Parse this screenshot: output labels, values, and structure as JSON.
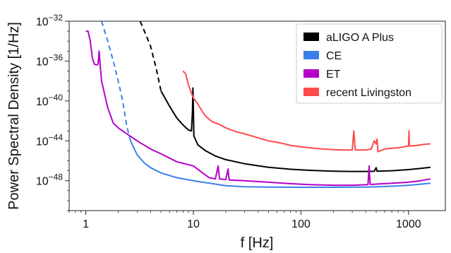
{
  "chart_data": {
    "type": "line",
    "title": "",
    "xlabel": "f [Hz]",
    "ylabel": "Power Spectral Density [1/Hz]",
    "xscale": "log",
    "yscale": "log",
    "xlim": [
      0.7,
      2200
    ],
    "ylim": [
      1e-51,
      1e-32
    ],
    "xticks": [
      {
        "value": 1,
        "label": "1"
      },
      {
        "value": 10,
        "label": "10"
      },
      {
        "value": 100,
        "label": "100"
      },
      {
        "value": 1000,
        "label": "1000"
      }
    ],
    "yticks": [
      {
        "value": 1e-32,
        "base": "10",
        "exp": "−32"
      },
      {
        "value": 1e-36,
        "base": "10",
        "exp": "−36"
      },
      {
        "value": 1e-40,
        "base": "10",
        "exp": "−40"
      },
      {
        "value": 1e-44,
        "base": "10",
        "exp": "−44"
      },
      {
        "value": 1e-48,
        "base": "10",
        "exp": "−48"
      }
    ],
    "grid": false,
    "legend_position": "top-right",
    "series": [
      {
        "name": "aLIGO A Plus",
        "color": "#000000",
        "points": [
          [
            5,
            1e-39
          ],
          [
            6,
            3e-41
          ],
          [
            7,
            2e-42
          ],
          [
            8,
            4e-43
          ],
          [
            9,
            1.2e-43
          ],
          [
            9.6,
            1e-43
          ],
          [
            9.8,
            1e-41
          ],
          [
            9.9,
            2e-39
          ],
          [
            10,
            2e-41
          ],
          [
            10.1,
            3e-44
          ],
          [
            11,
            4e-45
          ],
          [
            13,
            1e-45
          ],
          [
            16,
            3e-46
          ],
          [
            20,
            1.3e-46
          ],
          [
            30,
            5e-47
          ],
          [
            50,
            2.2e-47
          ],
          [
            80,
            1.4e-47
          ],
          [
            120,
            1.1e-47
          ],
          [
            200,
            9e-48
          ],
          [
            300,
            8.5e-48
          ],
          [
            400,
            8.5e-48
          ],
          [
            480,
            8.7e-48
          ],
          [
            500,
            2e-47
          ],
          [
            510,
            9e-48
          ],
          [
            700,
            1e-47
          ],
          [
            1000,
            1.3e-47
          ],
          [
            1300,
            1.7e-47
          ],
          [
            1600,
            2.2e-47
          ]
        ],
        "dashed_points": [
          [
            3.2,
            1e-32
          ],
          [
            3.6,
            5e-34
          ],
          [
            4,
            3e-35
          ],
          [
            4.5,
            2e-37
          ],
          [
            5,
            1e-39
          ]
        ]
      },
      {
        "name": "CE",
        "color": "#3a80e8",
        "points": [
          [
            2.6,
            1e-44
          ],
          [
            3,
            4e-46
          ],
          [
            3.5,
            6e-47
          ],
          [
            4,
            2e-47
          ],
          [
            5,
            6e-48
          ],
          [
            7,
            2e-48
          ],
          [
            10,
            1e-48
          ],
          [
            15,
            5e-49
          ],
          [
            20,
            3.2e-49
          ],
          [
            30,
            2.5e-49
          ],
          [
            50,
            2.3e-49
          ],
          [
            100,
            2.2e-49
          ],
          [
            200,
            2.2e-49
          ],
          [
            400,
            2.3e-49
          ],
          [
            600,
            2.6e-49
          ],
          [
            800,
            3e-49
          ],
          [
            1000,
            3.5e-49
          ],
          [
            1300,
            4.5e-49
          ],
          [
            1600,
            5.5e-49
          ]
        ],
        "dashed_points": [
          [
            1.4,
            1e-32
          ],
          [
            1.6,
            1e-34
          ],
          [
            1.8,
            1e-36
          ],
          [
            2.0,
            1e-38
          ],
          [
            2.2,
            1e-40
          ],
          [
            2.4,
            3e-43
          ],
          [
            2.6,
            1e-44
          ]
        ]
      },
      {
        "name": "ET",
        "color": "#b400c8",
        "points": [
          [
            1,
            1e-33
          ],
          [
            1.05,
            1e-33
          ],
          [
            1.1,
            1e-34
          ],
          [
            1.15,
            2e-36
          ],
          [
            1.2,
            5e-37
          ],
          [
            1.25,
            4e-37
          ],
          [
            1.3,
            5e-37
          ],
          [
            1.33,
            1e-35
          ],
          [
            1.36,
            3e-37
          ],
          [
            1.4,
            1e-38
          ],
          [
            1.6,
            2e-41
          ],
          [
            1.8,
            6e-43
          ],
          [
            2,
            2e-43
          ],
          [
            3,
            1e-44
          ],
          [
            4,
            1.5e-45
          ],
          [
            5,
            5e-46
          ],
          [
            7,
            8e-47
          ],
          [
            10,
            3e-47
          ],
          [
            14,
            2e-48
          ],
          [
            16,
            1.5e-48
          ],
          [
            17,
            3e-47
          ],
          [
            17.5,
            1.5e-48
          ],
          [
            20,
            1.3e-48
          ],
          [
            21,
            1.5e-47
          ],
          [
            21.5,
            1.2e-48
          ],
          [
            30,
            1e-48
          ],
          [
            50,
            7e-49
          ],
          [
            80,
            5e-49
          ],
          [
            120,
            4e-49
          ],
          [
            200,
            3.5e-49
          ],
          [
            300,
            3.5e-49
          ],
          [
            420,
            4e-49
          ],
          [
            430,
            3e-47
          ],
          [
            435,
            3e-48
          ],
          [
            440,
            4.2e-49
          ],
          [
            600,
            5e-49
          ],
          [
            800,
            6e-49
          ],
          [
            1000,
            7e-49
          ],
          [
            1300,
            1e-48
          ],
          [
            1600,
            1.5e-48
          ]
        ]
      },
      {
        "name": "recent Livingston",
        "color": "#ff4a4a",
        "points": [
          [
            8,
            1e-37
          ],
          [
            8.5,
            5e-38
          ],
          [
            9,
            4e-39
          ],
          [
            9.5,
            8e-40
          ],
          [
            10,
            2e-40
          ],
          [
            11,
            5e-41
          ],
          [
            12,
            1e-41
          ],
          [
            13,
            3e-42
          ],
          [
            14,
            1.5e-42
          ],
          [
            15,
            8e-43
          ],
          [
            17,
            5e-43
          ],
          [
            20,
            2e-43
          ],
          [
            25,
            8e-44
          ],
          [
            30,
            5e-44
          ],
          [
            40,
            2e-44
          ],
          [
            50,
            1e-44
          ],
          [
            60,
            7e-45
          ],
          [
            70,
            5e-45
          ],
          [
            80,
            3.5e-45
          ],
          [
            100,
            2.5e-45
          ],
          [
            120,
            2e-45
          ],
          [
            150,
            1.6e-45
          ],
          [
            200,
            1.3e-45
          ],
          [
            250,
            1.2e-45
          ],
          [
            300,
            1.2e-45
          ],
          [
            310,
            1e-43
          ],
          [
            320,
            1.2e-45
          ],
          [
            400,
            1.2e-45
          ],
          [
            450,
            1.5e-45
          ],
          [
            480,
            1e-44
          ],
          [
            500,
            5e-45
          ],
          [
            510,
            1.5e-44
          ],
          [
            520,
            8e-46
          ],
          [
            600,
            1.5e-45
          ],
          [
            700,
            1.8e-45
          ],
          [
            800,
            2e-45
          ],
          [
            900,
            2.5e-45
          ],
          [
            1000,
            3e-45
          ],
          [
            1010,
            1e-43
          ],
          [
            1020,
            3e-45
          ],
          [
            1200,
            3.5e-45
          ],
          [
            1400,
            4.5e-45
          ],
          [
            1600,
            5e-45
          ]
        ]
      }
    ]
  }
}
